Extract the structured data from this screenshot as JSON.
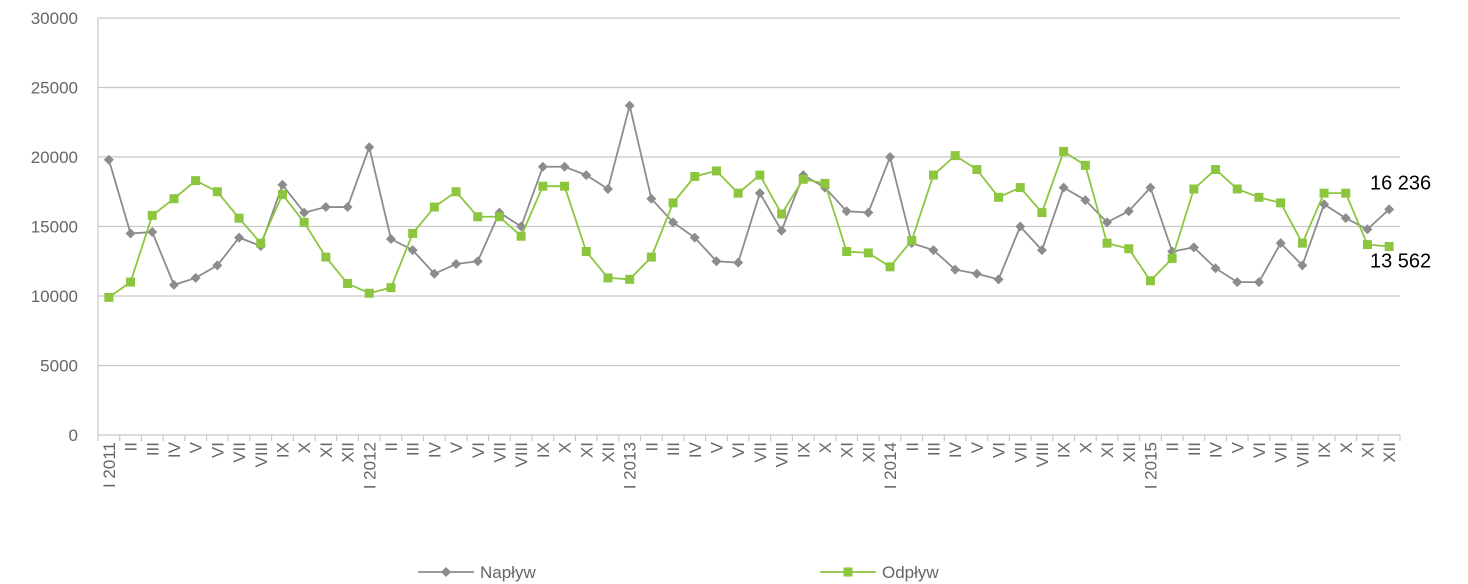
{
  "chart_data": {
    "type": "line",
    "categories": [
      "I 2011",
      "II",
      "III",
      "IV",
      "V",
      "VI",
      "VII",
      "VIII",
      "IX",
      "X",
      "XI",
      "XII",
      "I 2012",
      "II",
      "III",
      "IV",
      "V",
      "VI",
      "VII",
      "VIII",
      "IX",
      "X",
      "XI",
      "XII",
      "I 2013",
      "II",
      "III",
      "IV",
      "V",
      "VI",
      "VII",
      "VIII",
      "IX",
      "X",
      "XI",
      "XII",
      "I 2014",
      "II",
      "III",
      "IV",
      "V",
      "VI",
      "VII",
      "VIII",
      "IX",
      "X",
      "XI",
      "XII",
      "I 2015",
      "II",
      "III",
      "IV",
      "V",
      "VI",
      "VII",
      "VIII",
      "IX",
      "X",
      "XI",
      "XII"
    ],
    "series": [
      {
        "name": "Napływ",
        "color": "#8c8c8c",
        "marker": "diamond",
        "values": [
          19800,
          14500,
          14600,
          10800,
          11300,
          12200,
          14200,
          13600,
          18000,
          16000,
          16400,
          16400,
          20700,
          14100,
          13300,
          11600,
          12300,
          12500,
          16000,
          15000,
          19300,
          19300,
          18700,
          17700,
          23700,
          17000,
          15300,
          14200,
          12500,
          12400,
          17400,
          14700,
          18700,
          17800,
          16100,
          16000,
          20000,
          13800,
          13300,
          11900,
          11600,
          11200,
          15000,
          13300,
          17800,
          16900,
          15300,
          16100,
          17800,
          13200,
          13500,
          12000,
          11000,
          11000,
          13800,
          12200,
          16600,
          15600,
          14800,
          16236
        ],
        "value_labels": [
          null,
          null,
          null,
          null,
          null,
          null,
          null,
          null,
          null,
          null,
          null,
          null,
          null,
          null,
          null,
          null,
          null,
          null,
          null,
          null,
          null,
          null,
          null,
          null,
          null,
          null,
          null,
          null,
          null,
          null,
          null,
          null,
          null,
          null,
          null,
          null,
          null,
          null,
          null,
          null,
          null,
          null,
          null,
          null,
          null,
          null,
          null,
          null,
          null,
          null,
          null,
          null,
          null,
          null,
          null,
          null,
          null,
          null,
          null,
          "16 236"
        ]
      },
      {
        "name": "Odpływ",
        "color": "#8cc63f",
        "marker": "square",
        "values": [
          9900,
          11000,
          15800,
          17000,
          18300,
          17500,
          15600,
          13800,
          17300,
          15300,
          12800,
          10900,
          10200,
          10600,
          14500,
          16400,
          17500,
          15700,
          15700,
          14300,
          17900,
          17900,
          13200,
          11300,
          11200,
          12800,
          16700,
          18600,
          19000,
          17400,
          18700,
          15900,
          18400,
          18100,
          13200,
          13100,
          12100,
          14000,
          18700,
          20100,
          19100,
          17100,
          17800,
          16000,
          20400,
          19400,
          13800,
          13400,
          11100,
          12700,
          17700,
          19100,
          17700,
          17100,
          16700,
          13800,
          17400,
          17400,
          13700,
          13562
        ],
        "value_labels": [
          null,
          null,
          null,
          null,
          null,
          null,
          null,
          null,
          null,
          null,
          null,
          null,
          null,
          null,
          null,
          null,
          null,
          null,
          null,
          null,
          null,
          null,
          null,
          null,
          null,
          null,
          null,
          null,
          null,
          null,
          null,
          null,
          null,
          null,
          null,
          null,
          null,
          null,
          null,
          null,
          null,
          null,
          null,
          null,
          null,
          null,
          null,
          null,
          null,
          null,
          null,
          null,
          null,
          null,
          null,
          null,
          null,
          null,
          null,
          "13 562"
        ]
      }
    ],
    "ylim": [
      0,
      30000
    ],
    "yticks": [
      0,
      5000,
      10000,
      15000,
      20000,
      25000,
      30000
    ],
    "grid": true,
    "legend": "bottom"
  }
}
